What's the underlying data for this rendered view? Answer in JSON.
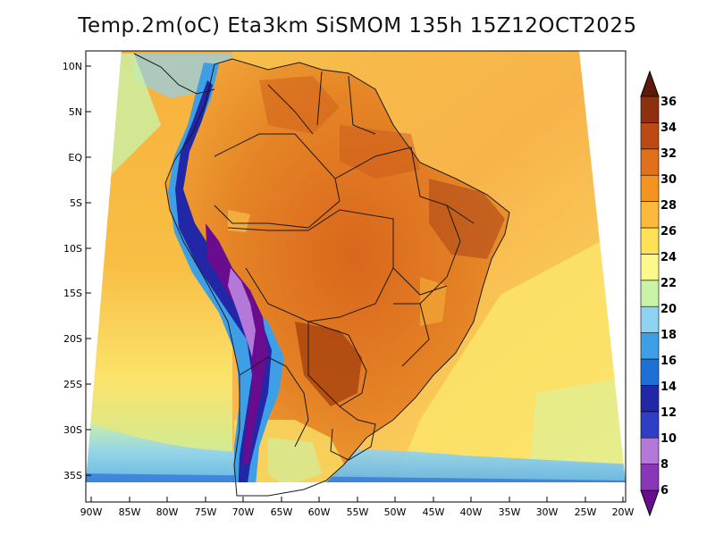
{
  "title": "Temp.2m(oC) Eta3km SiSMOM 135h 15Z12OCT2025",
  "variable": "2 m air temperature",
  "units": "oC",
  "lat_labels": [
    "10N",
    "5N",
    "EQ",
    "5S",
    "10S",
    "15S",
    "20S",
    "25S",
    "30S",
    "35S"
  ],
  "lon_labels": [
    "90W",
    "85W",
    "80W",
    "75W",
    "70W",
    "65W",
    "60W",
    "55W",
    "50W",
    "45W",
    "40W",
    "35W",
    "30W",
    "25W",
    "20W"
  ],
  "colorbar": {
    "ticks": [
      "6",
      "8",
      "10",
      "12",
      "14",
      "16",
      "18",
      "20",
      "22",
      "24",
      "26",
      "28",
      "30",
      "32",
      "34",
      "36"
    ],
    "colors": [
      "#6a0c8e",
      "#8a36b8",
      "#b478d8",
      "#2f3ec6",
      "#2227a8",
      "#1f6fd8",
      "#3f9fe6",
      "#8fd2f2",
      "#c9f3a8",
      "#fdf78c",
      "#fde157",
      "#fdb93b",
      "#f39320",
      "#e0701c",
      "#bd4a14",
      "#8c3010",
      "#5c1a08"
    ]
  },
  "colors": {
    "ocean_warm": "#f5a93d",
    "ocean_mid": "#fbc94a",
    "ocean_cool": "#fbe76a",
    "land_hot": "#e37a22",
    "andes_cold": "#4a2ba0",
    "boundary": "#1a1a1a"
  }
}
